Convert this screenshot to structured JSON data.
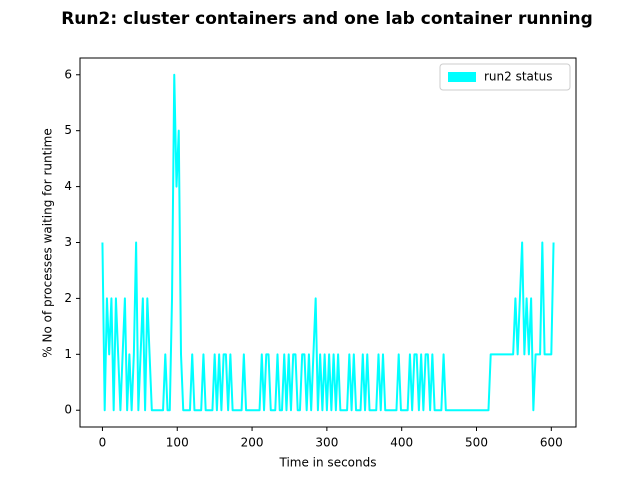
{
  "chart_data": {
    "type": "line",
    "title": "Run2: cluster containers and one lab container running",
    "xlabel": "Time  in seconds",
    "ylabel": "% No of processes waiting for runtime",
    "legend_loc": "upper right",
    "xlim": [
      -30,
      633
    ],
    "ylim": [
      -0.3,
      6.3
    ],
    "xticks": [
      0,
      100,
      200,
      300,
      400,
      500,
      600
    ],
    "yticks": [
      0,
      1,
      2,
      3,
      4,
      5,
      6
    ],
    "x": [
      0,
      3,
      6,
      9,
      12,
      15,
      18,
      21,
      24,
      27,
      30,
      33,
      36,
      39,
      42,
      45,
      48,
      51,
      54,
      57,
      60,
      63,
      66,
      69,
      72,
      75,
      78,
      81,
      84,
      87,
      90,
      93,
      96,
      99,
      102,
      105,
      108,
      111,
      114,
      117,
      120,
      123,
      126,
      129,
      132,
      135,
      138,
      141,
      144,
      147,
      150,
      153,
      156,
      159,
      162,
      165,
      168,
      171,
      174,
      177,
      180,
      183,
      186,
      189,
      192,
      195,
      198,
      201,
      204,
      207,
      210,
      213,
      216,
      219,
      222,
      225,
      228,
      231,
      234,
      237,
      240,
      243,
      246,
      249,
      252,
      255,
      258,
      261,
      264,
      267,
      270,
      273,
      276,
      279,
      282,
      285,
      288,
      291,
      294,
      297,
      300,
      303,
      306,
      309,
      312,
      315,
      318,
      321,
      324,
      327,
      330,
      333,
      336,
      339,
      342,
      345,
      348,
      351,
      354,
      357,
      360,
      363,
      366,
      369,
      372,
      375,
      378,
      381,
      384,
      387,
      390,
      393,
      396,
      399,
      402,
      405,
      408,
      411,
      414,
      417,
      420,
      423,
      426,
      429,
      432,
      435,
      438,
      441,
      444,
      447,
      450,
      453,
      456,
      459,
      462,
      465,
      468,
      471,
      474,
      477,
      480,
      483,
      486,
      489,
      492,
      495,
      498,
      501,
      504,
      507,
      510,
      513,
      516,
      519,
      522,
      525,
      528,
      531,
      534,
      537,
      540,
      543,
      546,
      549,
      552,
      555,
      558,
      561,
      564,
      567,
      570,
      573,
      576,
      579,
      582,
      585,
      588,
      591,
      594,
      597,
      600,
      603
    ],
    "series": [
      {
        "name": "run2 status",
        "color": "#00ffff",
        "values": [
          3,
          0,
          2,
          1,
          2,
          0,
          2,
          1,
          0,
          1,
          2,
          0,
          1,
          0,
          1,
          3,
          0,
          1,
          2,
          0,
          2,
          1,
          0,
          0,
          0,
          0,
          0,
          0,
          1,
          0,
          0,
          2,
          6,
          4,
          5,
          1,
          0,
          0,
          0,
          0,
          1,
          0,
          0,
          0,
          0,
          1,
          0,
          0,
          0,
          0,
          1,
          0,
          1,
          0,
          1,
          1,
          0,
          1,
          0,
          0,
          0,
          0,
          0,
          1,
          0,
          0,
          0,
          0,
          0,
          0,
          0,
          1,
          0,
          1,
          1,
          0,
          0,
          0,
          1,
          0,
          0,
          1,
          0,
          1,
          0,
          1,
          1,
          0,
          0,
          1,
          1,
          0,
          1,
          0,
          1,
          2,
          0,
          1,
          0,
          1,
          0,
          1,
          0,
          1,
          0,
          1,
          0,
          0,
          0,
          0,
          1,
          0,
          1,
          0,
          0,
          0,
          1,
          0,
          1,
          0,
          0,
          0,
          0,
          1,
          0,
          1,
          0,
          0,
          0,
          0,
          0,
          0,
          1,
          0,
          0,
          0,
          0,
          1,
          0,
          1,
          1,
          0,
          1,
          0,
          1,
          1,
          0,
          1,
          0,
          0,
          0,
          0,
          1,
          0,
          0,
          0,
          0,
          0,
          0,
          0,
          0,
          0,
          0,
          0,
          0,
          0,
          0,
          0,
          0,
          0,
          0,
          0,
          0,
          1,
          1,
          1,
          1,
          1,
          1,
          1,
          1,
          1,
          1,
          1,
          2,
          1,
          2,
          3,
          1,
          2,
          1,
          2,
          0,
          1,
          1,
          1,
          3,
          1,
          1,
          1,
          1,
          3
        ]
      }
    ]
  }
}
